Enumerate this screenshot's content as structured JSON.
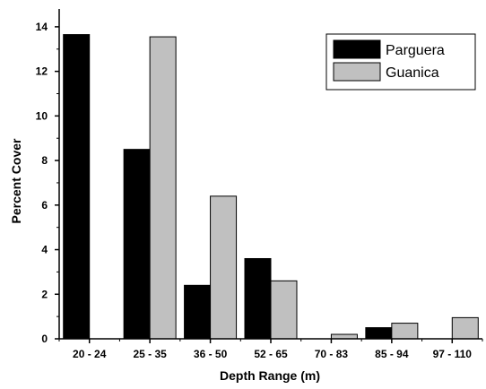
{
  "chart_data": {
    "type": "bar",
    "title": "",
    "xlabel": "Depth Range (m)",
    "ylabel": "Percent Cover",
    "categories": [
      "20 - 24",
      "25 - 35",
      "36 - 50",
      "52 - 65",
      "70 - 83",
      "85 - 94",
      "97 - 110"
    ],
    "series": [
      {
        "name": "Parguera",
        "color": "#000000",
        "values": [
          13.65,
          8.5,
          2.4,
          3.6,
          0,
          0.5,
          0
        ]
      },
      {
        "name": "Guanica",
        "color": "#c0c0c0",
        "values": [
          0,
          13.55,
          6.4,
          2.6,
          0.2,
          0.7,
          0.95
        ]
      }
    ],
    "ylim": [
      0,
      14.8
    ],
    "yticks": [
      0,
      2,
      4,
      6,
      8,
      10,
      12,
      14
    ],
    "grid": false,
    "legend_position": "top-right"
  }
}
